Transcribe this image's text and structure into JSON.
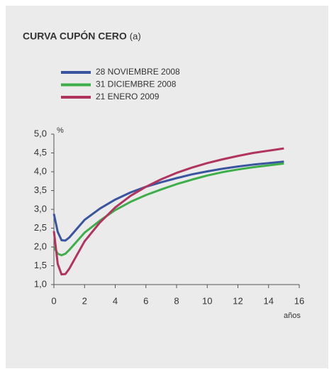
{
  "chart_data": {
    "type": "line",
    "title": "CURVA CUPÓN CERO",
    "title_note": "(a)",
    "y_unit": "%",
    "x_unit": "años",
    "x": [
      0,
      0.25,
      0.5,
      0.75,
      1,
      2,
      3,
      4,
      5,
      6,
      7,
      8,
      9,
      10,
      11,
      12,
      13,
      14,
      15
    ],
    "series": [
      {
        "name": "28 NOVIEMBRE 2008",
        "color": "#3a55a0",
        "values": [
          2.88,
          2.4,
          2.18,
          2.17,
          2.25,
          2.72,
          3.02,
          3.26,
          3.45,
          3.6,
          3.72,
          3.83,
          3.93,
          4.01,
          4.08,
          4.14,
          4.19,
          4.23,
          4.27
        ]
      },
      {
        "name": "31 DICIEMBRE 2008",
        "color": "#3dae49",
        "values": [
          2.0,
          1.82,
          1.78,
          1.82,
          1.92,
          2.38,
          2.7,
          2.98,
          3.2,
          3.38,
          3.53,
          3.67,
          3.79,
          3.9,
          3.99,
          4.06,
          4.12,
          4.17,
          4.22
        ]
      },
      {
        "name": "21 ENERO 2009",
        "color": "#b0345f",
        "values": [
          2.42,
          1.55,
          1.27,
          1.28,
          1.42,
          2.15,
          2.65,
          3.05,
          3.36,
          3.6,
          3.8,
          3.97,
          4.11,
          4.23,
          4.33,
          4.42,
          4.5,
          4.56,
          4.62
        ]
      }
    ],
    "xlim": [
      0,
      16
    ],
    "xticks": [
      0,
      2,
      4,
      6,
      8,
      10,
      12,
      14,
      16
    ],
    "ylim": [
      1,
      5
    ],
    "yticks": [
      {
        "value": 1,
        "label": "1,0"
      },
      {
        "value": 1.5,
        "label": "1,5"
      },
      {
        "value": 2,
        "label": "2,0"
      },
      {
        "value": 2.5,
        "label": "2,5"
      },
      {
        "value": 3,
        "label": "3,0"
      },
      {
        "value": 3.5,
        "label": "3,5"
      },
      {
        "value": 4,
        "label": "4,0"
      },
      {
        "value": 4.5,
        "label": "4,5"
      },
      {
        "value": 5,
        "label": "5,0"
      }
    ],
    "grid": false
  }
}
